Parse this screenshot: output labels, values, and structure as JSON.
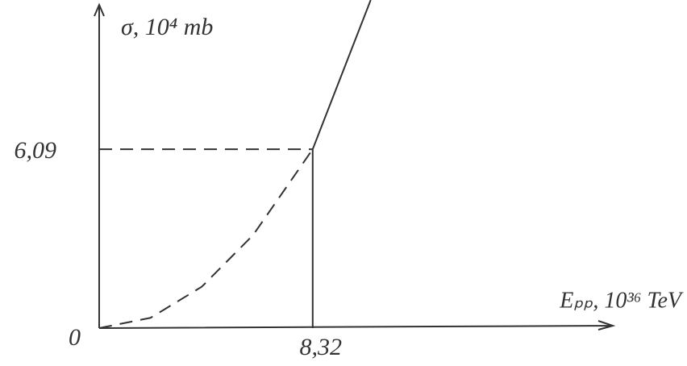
{
  "chart_data": {
    "type": "line",
    "y_label": "σ, 10⁴ mb",
    "x_label": "Eₚₚ, 10³⁶ TeV",
    "xlim": [
      0,
      19.7
    ],
    "ylim": [
      0,
      11.17
    ],
    "xticks": [
      {
        "value": 8.32,
        "label": "8,32"
      }
    ],
    "yticks": [
      0,
      {
        "value": 6.09,
        "label": "6,09"
      }
    ],
    "series": [
      {
        "color": "#333333",
        "dashed": true,
        "x": [
          0,
          2,
          4,
          6,
          8.32
        ],
        "values": [
          0,
          0.35,
          1.41,
          3.17,
          6.09
        ]
      },
      {
        "color": "#333333",
        "dashed": false,
        "x": [
          8.32,
          10.58
        ],
        "values": [
          6.09,
          11.17
        ]
      }
    ]
  }
}
